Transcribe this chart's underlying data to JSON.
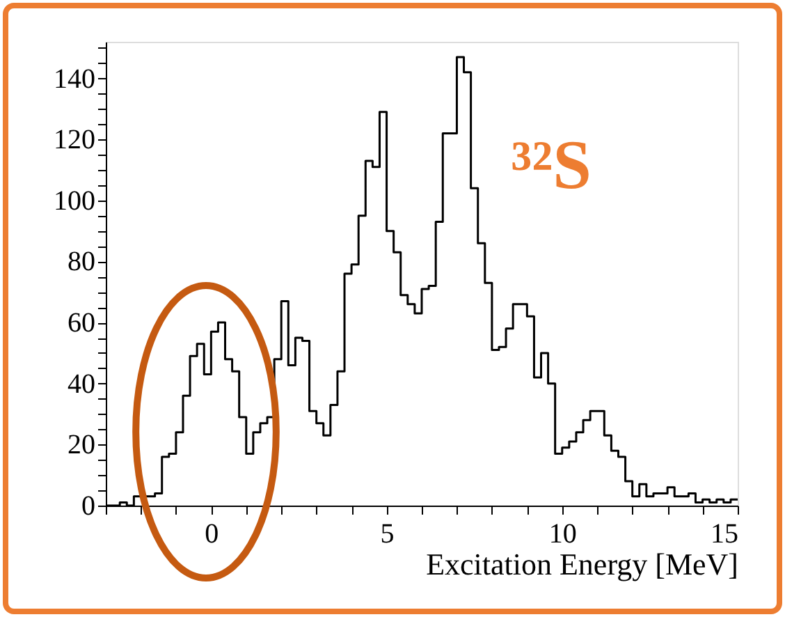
{
  "chart_data": {
    "type": "histogram",
    "xlabel": "Excitation Energy [MeV]",
    "bins": [
      -3,
      -2.8,
      -2.6,
      -2.4,
      -2.2,
      -2,
      -1.8,
      -1.6,
      -1.4,
      -1.2,
      -1,
      -0.8,
      -0.6,
      -0.4,
      -0.2,
      0,
      0.2,
      0.4,
      0.6,
      0.8,
      1,
      1.2,
      1.4,
      1.6,
      1.8,
      2,
      2.2,
      2.4,
      2.6,
      2.8,
      3,
      3.2,
      3.4,
      3.6,
      3.8,
      4,
      4.2,
      4.4,
      4.6,
      4.8,
      5,
      5.2,
      5.4,
      5.6,
      5.8,
      6,
      6.2,
      6.4,
      6.6,
      6.8,
      7,
      7.2,
      7.4,
      7.6,
      7.8,
      8,
      8.2,
      8.4,
      8.6,
      8.8,
      9,
      9.2,
      9.4,
      9.6,
      9.8,
      10,
      10.2,
      10.4,
      10.6,
      10.8,
      11,
      11.2,
      11.4,
      11.6,
      11.8,
      12,
      12.2,
      12.4,
      12.6,
      12.8,
      13,
      13.2,
      13.4,
      13.6,
      13.8,
      14,
      14.2,
      14.4,
      14.6,
      14.8,
      15
    ],
    "values": [
      0,
      0,
      1,
      0,
      3,
      3,
      3,
      4,
      16,
      17,
      24,
      36,
      49,
      53,
      43,
      57,
      60,
      48,
      44,
      29,
      17,
      24,
      27,
      29,
      48,
      67,
      46,
      55,
      54,
      31,
      27,
      23,
      33,
      44,
      76,
      79,
      95,
      113,
      111,
      129,
      90,
      83,
      69,
      66,
      63,
      71,
      72,
      93,
      122,
      122,
      147,
      142,
      104,
      86,
      73,
      51,
      52,
      58,
      66,
      66,
      62,
      42,
      50,
      40,
      17,
      19,
      21,
      24,
      28,
      31,
      31,
      23,
      18,
      16,
      8,
      3,
      7,
      3,
      4,
      4,
      6,
      3,
      3,
      4,
      1,
      2,
      1,
      2,
      1,
      2
    ],
    "color": "#000000",
    "xlim": [
      -3,
      15
    ],
    "xticks": [
      {
        "value": -3,
        "label": null
      },
      {
        "value": -2,
        "label": null
      },
      {
        "value": -1,
        "label": null
      },
      0,
      {
        "value": 1,
        "label": null
      },
      {
        "value": 2,
        "label": null
      },
      {
        "value": 3,
        "label": null
      },
      {
        "value": 4,
        "label": null
      },
      5,
      {
        "value": 6,
        "label": null
      },
      {
        "value": 7,
        "label": null
      },
      {
        "value": 8,
        "label": null
      },
      {
        "value": 9,
        "label": null
      },
      10,
      {
        "value": 11,
        "label": null
      },
      {
        "value": 12,
        "label": null
      },
      {
        "value": 13,
        "label": null
      },
      {
        "value": 14,
        "label": null
      },
      15
    ],
    "ylim": [
      0,
      152
    ],
    "yticks": [
      0,
      {
        "value": 5,
        "label": null
      },
      {
        "value": 10,
        "label": null
      },
      {
        "value": 15,
        "label": null
      },
      20,
      {
        "value": 25,
        "label": null
      },
      {
        "value": 30,
        "label": null
      },
      {
        "value": 35,
        "label": null
      },
      40,
      {
        "value": 45,
        "label": null
      },
      {
        "value": 50,
        "label": null
      },
      {
        "value": 55,
        "label": null
      },
      60,
      {
        "value": 65,
        "label": null
      },
      {
        "value": 70,
        "label": null
      },
      {
        "value": 75,
        "label": null
      },
      80,
      {
        "value": 85,
        "label": null
      },
      {
        "value": 90,
        "label": null
      },
      {
        "value": 95,
        "label": null
      },
      100,
      {
        "value": 105,
        "label": null
      },
      {
        "value": 110,
        "label": null
      },
      {
        "value": 115,
        "label": null
      },
      120,
      {
        "value": 125,
        "label": null
      },
      {
        "value": 130,
        "label": null
      },
      {
        "value": 135,
        "label": null
      },
      140,
      {
        "value": 145,
        "label": null
      },
      {
        "value": 150,
        "label": null
      }
    ],
    "annotations": [
      "³²S"
    ],
    "grid": false
  }
}
